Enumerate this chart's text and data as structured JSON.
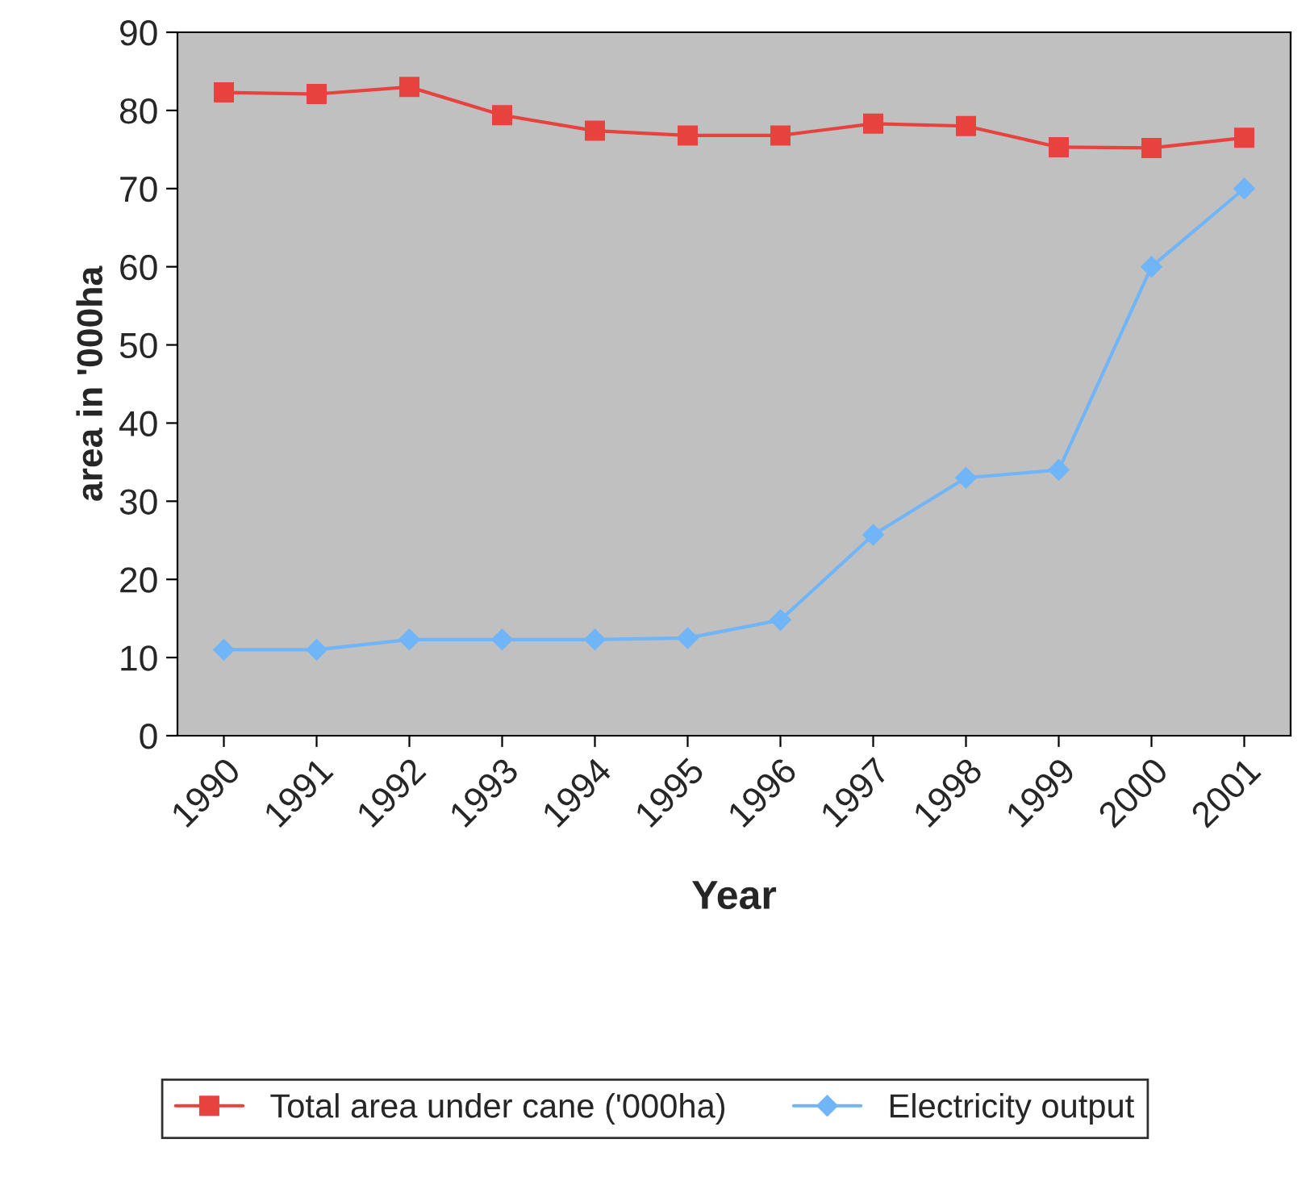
{
  "chart_data": {
    "type": "line",
    "xlabel": "Year",
    "ylabel": "area in '000ha",
    "categories": [
      "1990",
      "1991",
      "1992",
      "1993",
      "1994",
      "1995",
      "1996",
      "1997",
      "1998",
      "1999",
      "2000",
      "2001"
    ],
    "series": [
      {
        "name": "Total area under cane ('000ha)",
        "color": "#e8423f",
        "marker": "square",
        "values": [
          82.3,
          82.1,
          83,
          79.4,
          77.4,
          76.8,
          76.8,
          78.3,
          78,
          75.3,
          75.2,
          76.5
        ]
      },
      {
        "name": "Electricity output",
        "color": "#6fb5f7",
        "marker": "diamond",
        "values": [
          11,
          11,
          12.3,
          12.3,
          12.3,
          12.5,
          14.8,
          25.7,
          33,
          34,
          60,
          70
        ]
      }
    ],
    "ylim": [
      0,
      90
    ],
    "yticks": [
      0,
      10,
      20,
      30,
      40,
      50,
      60,
      70,
      80,
      90
    ],
    "grid": false,
    "legend": "bottom",
    "line_style": "solid"
  }
}
